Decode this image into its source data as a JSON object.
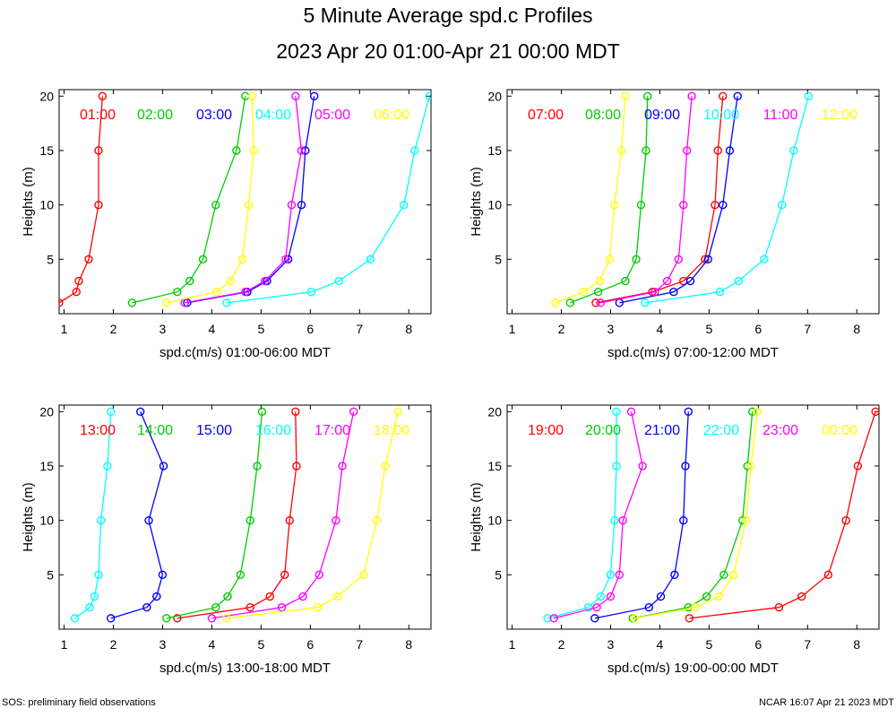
{
  "title": "5 Minute Average spd.c Profiles",
  "subtitle": "2023 Apr 20 01:00-Apr 21 00:00 MDT",
  "footer_left": "SOS: preliminary field observations",
  "footer_right": "NCAR 16:07 Apr 21 2023 MDT",
  "colors": [
    "#ff0000",
    "#00cc00",
    "#0000ff",
    "#00ffff",
    "#ff00ff",
    "#ffff00"
  ],
  "chart_data": [
    {
      "type": "line",
      "xlabel": "spd.c(m/s) 01:00-06:00 MDT",
      "ylabel": "Heights (m)",
      "xlim": [
        0.9,
        8.45
      ],
      "ylim": [
        0,
        20.6
      ],
      "xticks": [
        1,
        2,
        3,
        4,
        5,
        6,
        7,
        8
      ],
      "yticks": [
        5,
        10,
        15,
        20
      ],
      "heights": [
        1,
        2,
        3,
        5,
        10,
        15,
        20
      ],
      "series": [
        {
          "name": "01:00",
          "values": [
            0.9,
            1.25,
            1.3,
            1.5,
            1.7,
            1.7,
            1.78
          ]
        },
        {
          "name": "02:00",
          "values": [
            2.38,
            3.3,
            3.55,
            3.82,
            4.08,
            4.5,
            4.68
          ]
        },
        {
          "name": "03:00",
          "values": [
            3.5,
            4.72,
            5.12,
            5.55,
            5.82,
            5.9,
            6.08
          ]
        },
        {
          "name": "04:00",
          "values": [
            4.3,
            6.02,
            6.58,
            7.22,
            7.9,
            8.12,
            8.42
          ]
        },
        {
          "name": "05:00",
          "values": [
            3.45,
            4.68,
            5.08,
            5.5,
            5.62,
            5.82,
            5.7
          ]
        },
        {
          "name": "06:00",
          "values": [
            3.08,
            4.1,
            4.38,
            4.62,
            4.75,
            4.85,
            4.82
          ]
        }
      ]
    },
    {
      "type": "line",
      "xlabel": "spd.c(m/s) 07:00-12:00 MDT",
      "ylabel": "Heights (m)",
      "xlim": [
        0.9,
        8.45
      ],
      "ylim": [
        0,
        20.6
      ],
      "xticks": [
        1,
        2,
        3,
        4,
        5,
        6,
        7,
        8
      ],
      "yticks": [
        5,
        10,
        15,
        20
      ],
      "heights": [
        1,
        2,
        3,
        5,
        10,
        15,
        20
      ],
      "series": [
        {
          "name": "07:00",
          "values": [
            2.7,
            3.85,
            4.48,
            4.92,
            5.12,
            5.18,
            5.28
          ]
        },
        {
          "name": "08:00",
          "values": [
            2.18,
            2.75,
            3.3,
            3.52,
            3.62,
            3.72,
            3.75
          ]
        },
        {
          "name": "09:00",
          "values": [
            3.18,
            4.28,
            4.62,
            4.98,
            5.28,
            5.42,
            5.58
          ]
        },
        {
          "name": "10:00",
          "values": [
            3.7,
            5.22,
            5.6,
            6.12,
            6.48,
            6.72,
            7.02
          ]
        },
        {
          "name": "11:00",
          "values": [
            2.8,
            3.9,
            4.15,
            4.38,
            4.48,
            4.55,
            4.65
          ]
        },
        {
          "name": "12:00",
          "values": [
            1.88,
            2.45,
            2.78,
            2.98,
            3.08,
            3.22,
            3.3
          ]
        }
      ]
    },
    {
      "type": "line",
      "xlabel": "spd.c(m/s) 13:00-18:00 MDT",
      "ylabel": "Heights (m)",
      "xlim": [
        0.9,
        8.45
      ],
      "ylim": [
        0,
        20.6
      ],
      "xticks": [
        1,
        2,
        3,
        4,
        5,
        6,
        7,
        8
      ],
      "yticks": [
        5,
        10,
        15,
        20
      ],
      "heights": [
        1,
        2,
        3,
        5,
        10,
        15,
        20
      ],
      "series": [
        {
          "name": "13:00",
          "values": [
            3.3,
            4.78,
            5.18,
            5.48,
            5.58,
            5.72,
            5.7
          ]
        },
        {
          "name": "14:00",
          "values": [
            3.08,
            4.08,
            4.32,
            4.58,
            4.78,
            4.92,
            5.02
          ]
        },
        {
          "name": "15:00",
          "values": [
            1.95,
            2.68,
            2.88,
            3.0,
            2.72,
            3.02,
            2.55
          ]
        },
        {
          "name": "16:00",
          "values": [
            1.22,
            1.52,
            1.62,
            1.7,
            1.75,
            1.88,
            1.95
          ]
        },
        {
          "name": "17:00",
          "values": [
            4.0,
            5.42,
            5.85,
            6.18,
            6.52,
            6.65,
            6.88
          ]
        },
        {
          "name": "18:00",
          "values": [
            4.3,
            6.15,
            6.55,
            7.08,
            7.35,
            7.52,
            7.78
          ]
        }
      ]
    },
    {
      "type": "line",
      "xlabel": "spd.c(m/s) 19:00-00:00 MDT",
      "ylabel": "Heights (m)",
      "xlim": [
        0.9,
        8.45
      ],
      "ylim": [
        0,
        20.6
      ],
      "xticks": [
        1,
        2,
        3,
        4,
        5,
        6,
        7,
        8
      ],
      "yticks": [
        5,
        10,
        15,
        20
      ],
      "heights": [
        1,
        2,
        3,
        5,
        10,
        15,
        20
      ],
      "series": [
        {
          "name": "19:00",
          "values": [
            4.6,
            6.42,
            6.88,
            7.42,
            7.78,
            8.02,
            8.38
          ]
        },
        {
          "name": "20:00",
          "values": [
            3.45,
            4.58,
            4.95,
            5.3,
            5.68,
            5.78,
            5.88
          ]
        },
        {
          "name": "21:00",
          "values": [
            2.68,
            3.78,
            4.02,
            4.3,
            4.48,
            4.52,
            4.58
          ]
        },
        {
          "name": "22:00",
          "values": [
            1.72,
            2.55,
            2.8,
            3.0,
            3.08,
            3.12,
            3.12
          ]
        },
        {
          "name": "23:00",
          "values": [
            1.85,
            2.72,
            3.0,
            3.18,
            3.25,
            3.65,
            3.42
          ]
        },
        {
          "name": "00:00",
          "values": [
            3.48,
            4.72,
            5.2,
            5.5,
            5.75,
            5.85,
            5.98
          ]
        }
      ]
    }
  ]
}
